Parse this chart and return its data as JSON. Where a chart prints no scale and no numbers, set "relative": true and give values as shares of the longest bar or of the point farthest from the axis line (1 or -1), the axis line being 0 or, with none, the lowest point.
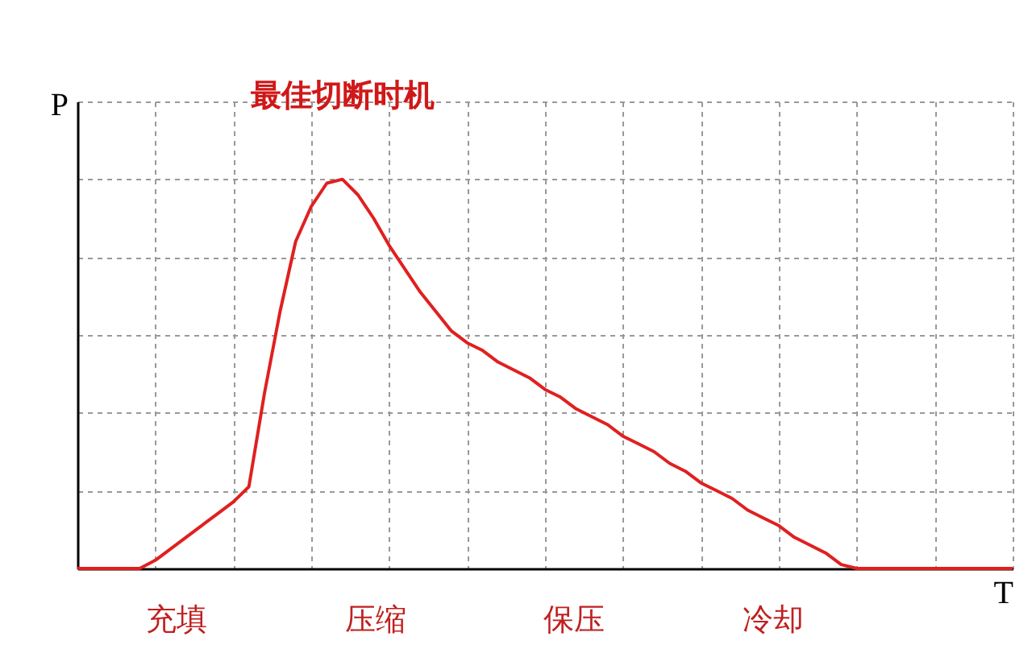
{
  "chart_data": {
    "type": "line",
    "relative": true,
    "xlabel": "T",
    "ylabel": "P",
    "color": "#e02020",
    "grid": true,
    "marker": "none",
    "categories": [
      null,
      null,
      null,
      null,
      null,
      null,
      null,
      null,
      null,
      null,
      null,
      null,
      null,
      null,
      null,
      null,
      null,
      null,
      null,
      null,
      null,
      null,
      null,
      null,
      null,
      null,
      null,
      null,
      null,
      null,
      null,
      null,
      null,
      null,
      null,
      null,
      null,
      null,
      null,
      null,
      null,
      null,
      null,
      null,
      null,
      null,
      null,
      null,
      null,
      null,
      null,
      null,
      null,
      null,
      null,
      null,
      null,
      null,
      null,
      null,
      null
    ],
    "values": [
      0,
      0,
      0,
      0,
      0,
      0.021,
      0.051,
      0.081,
      0.111,
      0.141,
      0.171,
      0.21,
      0.45,
      0.66,
      0.84,
      0.93,
      0.99,
      1,
      0.96,
      0.9,
      0.83,
      0.77,
      0.71,
      0.66,
      0.61,
      0.58,
      0.56,
      0.53,
      0.51,
      0.49,
      0.46,
      0.44,
      0.41,
      0.39,
      0.37,
      0.34,
      0.32,
      0.3,
      0.27,
      0.25,
      0.22,
      0.2,
      0.18,
      0.15,
      0.13,
      0.11,
      0.08,
      0.06,
      0.04,
      0.01,
      0,
      0,
      0,
      0,
      0,
      0,
      0,
      0,
      0,
      0,
      0
    ],
    "annotations": [
      {
        "text": "最佳切断时机",
        "y": 1
      },
      "充填",
      "压缩",
      "保压",
      "冷却"
    ]
  }
}
